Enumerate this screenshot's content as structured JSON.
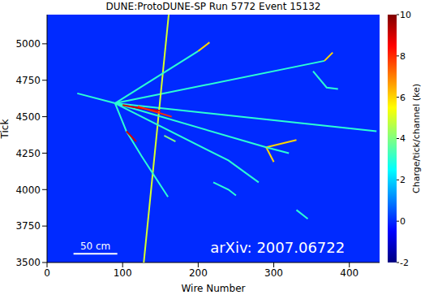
{
  "chart_data": {
    "type": "heatmap",
    "title": "DUNE:ProtoDUNE-SP Run 5772 Event 15132",
    "x_label": "Wire Number",
    "y_label": "Tick",
    "xlim": [
      0,
      440
    ],
    "xticks": [
      0,
      100,
      200,
      300,
      400
    ],
    "ylim": [
      3500,
      5200
    ],
    "yticks": [
      3500,
      3750,
      4000,
      4250,
      4500,
      4750,
      5000
    ],
    "colorbar": {
      "label": "Charge/tick/channel (ke)",
      "range": [
        -2,
        10
      ],
      "ticks": [
        -2,
        0,
        2,
        4,
        6,
        8,
        10
      ]
    },
    "background_charge": 0,
    "tracks": [
      {
        "points": [
          [
            90,
            4592
          ],
          [
            436,
            4400
          ]
        ],
        "charge": 3
      },
      {
        "points": [
          [
            90,
            4592
          ],
          [
            367,
            4883
          ]
        ],
        "charge": 3
      },
      {
        "points": [
          [
            367,
            4883
          ],
          [
            378,
            4940
          ]
        ],
        "charge": 6
      },
      {
        "points": [
          [
            352,
            4812
          ],
          [
            370,
            4700
          ],
          [
            385,
            4690
          ]
        ],
        "charge": 3
      },
      {
        "points": [
          [
            90,
            4592
          ],
          [
            40,
            4660
          ]
        ],
        "charge": 3
      },
      {
        "points": [
          [
            128,
            3500
          ],
          [
            161,
            5200
          ]
        ],
        "charge": 5
      },
      {
        "points": [
          [
            90,
            4592
          ],
          [
            200,
            4950
          ]
        ],
        "charge": 3
      },
      {
        "points": [
          [
            200,
            4950
          ],
          [
            215,
            5010
          ]
        ],
        "charge": 6
      },
      {
        "points": [
          [
            90,
            4592
          ],
          [
            290,
            4290
          ]
        ],
        "charge": 3
      },
      {
        "points": [
          [
            290,
            4290
          ],
          [
            300,
            4190
          ]
        ],
        "charge": 6
      },
      {
        "points": [
          [
            290,
            4290
          ],
          [
            330,
            4340
          ]
        ],
        "charge": 6
      },
      {
        "points": [
          [
            290,
            4290
          ],
          [
            320,
            4250
          ]
        ],
        "charge": 3
      },
      {
        "points": [
          [
            90,
            4592
          ],
          [
            240,
            4200
          ],
          [
            280,
            4050
          ]
        ],
        "charge": 3
      },
      {
        "points": [
          [
            90,
            4592
          ],
          [
            105,
            4400
          ],
          [
            125,
            4230
          ],
          [
            160,
            3950
          ]
        ],
        "charge": 3
      },
      {
        "points": [
          [
            105,
            4400
          ],
          [
            118,
            4330
          ]
        ],
        "charge": 9
      },
      {
        "points": [
          [
            100,
            4580
          ],
          [
            120,
            4560
          ],
          [
            150,
            4540
          ]
        ],
        "charge": 9
      },
      {
        "points": [
          [
            120,
            4570
          ],
          [
            165,
            4500
          ]
        ],
        "charge": 8
      },
      {
        "points": [
          [
            220,
            4050
          ],
          [
            240,
            4000
          ],
          [
            250,
            3960
          ]
        ],
        "charge": 3
      },
      {
        "points": [
          [
            330,
            3860
          ],
          [
            345,
            3800
          ]
        ],
        "charge": 3
      },
      {
        "points": [
          [
            155,
            4370
          ],
          [
            170,
            4330
          ]
        ],
        "charge": 4
      }
    ],
    "annotation": {
      "text": "arXiv: 2007.06722",
      "x": 305,
      "y": 3600
    },
    "scale_bar": {
      "label": "50 cm",
      "x": [
        35,
        93
      ],
      "y": 3560
    }
  }
}
